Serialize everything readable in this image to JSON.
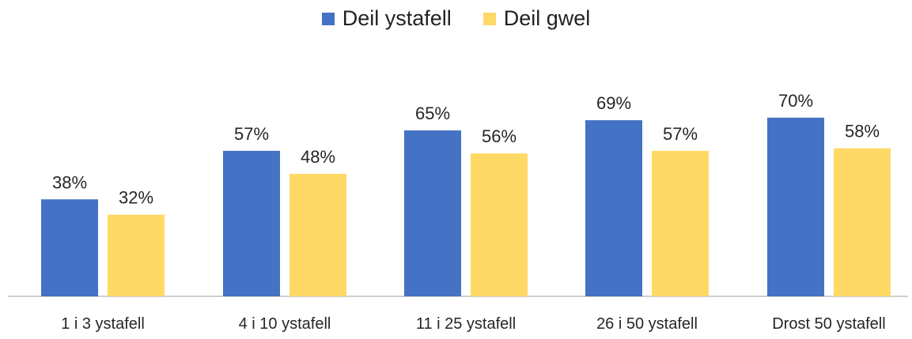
{
  "chart_data": {
    "type": "bar",
    "categories": [
      "1 i 3 ystafell",
      "4 i 10 ystafell",
      "11 i 25 ystafell",
      "26 i 50 ystafell",
      "Drost 50 ystafell"
    ],
    "series": [
      {
        "name": "Deil ystafell",
        "color": "#4472C4",
        "values": [
          38,
          57,
          65,
          69,
          70
        ],
        "labels": [
          "38%",
          "57%",
          "65%",
          "69%",
          "70%"
        ]
      },
      {
        "name": "Deil gwel",
        "color": "#FFD966",
        "values": [
          32,
          48,
          56,
          57,
          58
        ],
        "labels": [
          "32%",
          "48%",
          "56%",
          "57%",
          "58%"
        ]
      }
    ],
    "ylim": [
      0,
      100
    ],
    "grid": false,
    "legend_position": "top-center",
    "title": "",
    "xlabel": "",
    "ylabel": ""
  }
}
